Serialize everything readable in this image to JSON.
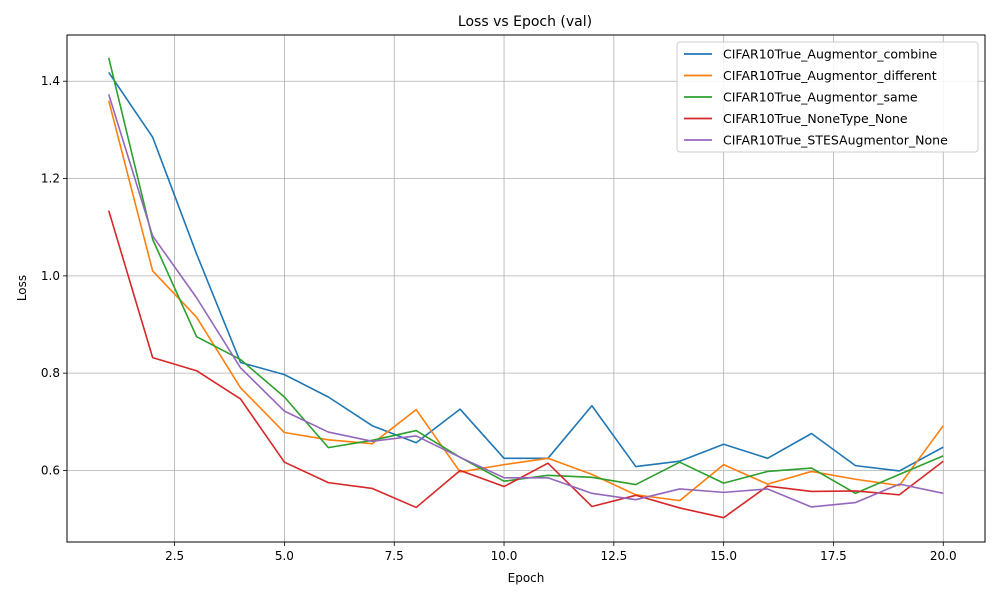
{
  "chart_data": {
    "type": "line",
    "title": "Loss vs Epoch (val)",
    "xlabel": "Epoch",
    "ylabel": "Loss",
    "xlim": [
      0.05,
      20.95
    ],
    "ylim": [
      0.453,
      1.495
    ],
    "xticks": [
      2.5,
      5.0,
      7.5,
      10.0,
      12.5,
      15.0,
      17.5,
      20.0
    ],
    "xtick_labels": [
      "2.5",
      "5.0",
      "7.5",
      "10.0",
      "12.5",
      "15.0",
      "17.5",
      "20.0"
    ],
    "yticks": [
      0.6,
      0.8,
      1.0,
      1.2,
      1.4
    ],
    "ytick_labels": [
      "0.6",
      "0.8",
      "1.0",
      "1.2",
      "1.4"
    ],
    "grid": true,
    "legend_position": "top-right",
    "x": [
      1,
      2,
      3,
      4,
      5,
      6,
      7,
      8,
      9,
      10,
      11,
      12,
      13,
      14,
      15,
      16,
      17,
      18,
      19,
      20
    ],
    "series": [
      {
        "name": "CIFAR10True_Augmentor_combine",
        "color": "#1f77b4",
        "values": [
          1.418,
          1.285,
          1.045,
          0.822,
          0.797,
          0.751,
          0.692,
          0.657,
          0.726,
          0.625,
          0.625,
          0.733,
          0.608,
          0.619,
          0.654,
          0.625,
          0.676,
          0.61,
          0.599,
          0.648
        ]
      },
      {
        "name": "CIFAR10True_Augmentor_different",
        "color": "#ff7f0e",
        "values": [
          1.36,
          1.01,
          0.915,
          0.77,
          0.678,
          0.663,
          0.655,
          0.725,
          0.597,
          0.612,
          0.625,
          0.592,
          0.55,
          0.538,
          0.612,
          0.572,
          0.598,
          0.582,
          0.569,
          0.692
        ]
      },
      {
        "name": "CIFAR10True_Augmentor_same",
        "color": "#2ca02c",
        "values": [
          1.448,
          1.075,
          0.875,
          0.828,
          0.751,
          0.647,
          0.662,
          0.682,
          0.627,
          0.578,
          0.59,
          0.586,
          0.571,
          0.617,
          0.574,
          0.598,
          0.605,
          0.553,
          0.592,
          0.63
        ]
      },
      {
        "name": "CIFAR10True_NoneType_None",
        "color": "#d62728",
        "values": [
          1.134,
          0.832,
          0.805,
          0.747,
          0.617,
          0.575,
          0.563,
          0.524,
          0.6,
          0.567,
          0.615,
          0.526,
          0.549,
          0.523,
          0.503,
          0.568,
          0.557,
          0.558,
          0.55,
          0.619
        ]
      },
      {
        "name": "CIFAR10True_STESAugmentor_None",
        "color": "#9467bd",
        "values": [
          1.373,
          1.082,
          0.955,
          0.811,
          0.722,
          0.679,
          0.66,
          0.671,
          0.627,
          0.585,
          0.585,
          0.553,
          0.54,
          0.562,
          0.555,
          0.562,
          0.525,
          0.534,
          0.572,
          0.553
        ]
      }
    ]
  }
}
